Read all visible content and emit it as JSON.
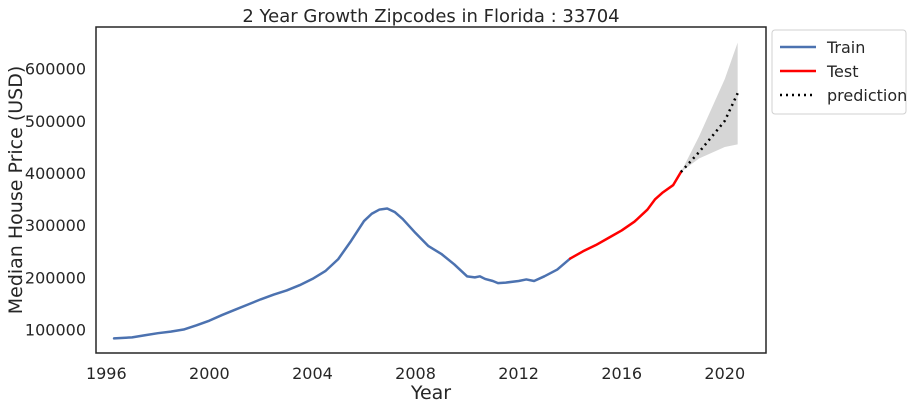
{
  "chart_data": {
    "type": "line",
    "title": "2 Year Growth Zipcodes in Florida : 33704",
    "xlabel": "Year",
    "ylabel": "Median House Price (USD)",
    "xlim": [
      1995.6,
      2021.6
    ],
    "ylim": [
      55000,
      680000
    ],
    "grid": false,
    "legend_position": "outside top-right",
    "x_ticks": [
      1996,
      2000,
      2004,
      2008,
      2012,
      2016,
      2020
    ],
    "x_tick_labels": [
      "1996",
      "2000",
      "2004",
      "2008",
      "2012",
      "2016",
      "2020"
    ],
    "y_ticks": [
      100000,
      200000,
      300000,
      400000,
      500000,
      600000
    ],
    "y_tick_labels": [
      "100000",
      "200000",
      "300000",
      "400000",
      "500000",
      "600000"
    ],
    "series": [
      {
        "name": "Train",
        "color": "#4c72b0",
        "style": "solid",
        "x": [
          1996.3,
          1997.0,
          1997.5,
          1998.0,
          1998.5,
          1999.0,
          1999.5,
          2000.0,
          2000.5,
          2001.0,
          2001.5,
          2002.0,
          2002.5,
          2003.0,
          2003.5,
          2004.0,
          2004.5,
          2005.0,
          2005.5,
          2006.0,
          2006.3,
          2006.6,
          2006.9,
          2007.2,
          2007.5,
          2008.0,
          2008.5,
          2009.0,
          2009.5,
          2010.0,
          2010.3,
          2010.5,
          2010.7,
          2011.0,
          2011.2,
          2011.5,
          2012.0,
          2012.3,
          2012.6,
          2013.0,
          2013.5,
          2014.0
        ],
        "y": [
          83000,
          85000,
          89000,
          93000,
          96000,
          100000,
          108000,
          117000,
          128000,
          138000,
          148000,
          158000,
          167000,
          175000,
          185000,
          197000,
          212000,
          235000,
          270000,
          308000,
          322000,
          330000,
          332000,
          325000,
          312000,
          285000,
          260000,
          245000,
          225000,
          202000,
          200000,
          202000,
          197000,
          193000,
          189000,
          190000,
          193000,
          196000,
          193000,
          202000,
          215000,
          236000
        ]
      },
      {
        "name": "Test",
        "color": "#ff0000",
        "style": "solid",
        "x": [
          2014.0,
          2014.5,
          2015.0,
          2015.5,
          2016.0,
          2016.5,
          2017.0,
          2017.3,
          2017.6,
          2018.0,
          2018.3
        ],
        "y": [
          236000,
          250000,
          262000,
          276000,
          290000,
          307000,
          330000,
          350000,
          363000,
          377000,
          402000
        ]
      },
      {
        "name": "prediction",
        "color": "#000000",
        "style": "dotted",
        "x": [
          2018.3,
          2019.0,
          2020.0,
          2020.5
        ],
        "y": [
          402000,
          440000,
          500000,
          553000
        ],
        "ci_lower": [
          402000,
          428000,
          450000,
          455000
        ],
        "ci_upper": [
          402000,
          470000,
          580000,
          650000
        ],
        "ci_color": "#c0c0c0"
      }
    ]
  }
}
